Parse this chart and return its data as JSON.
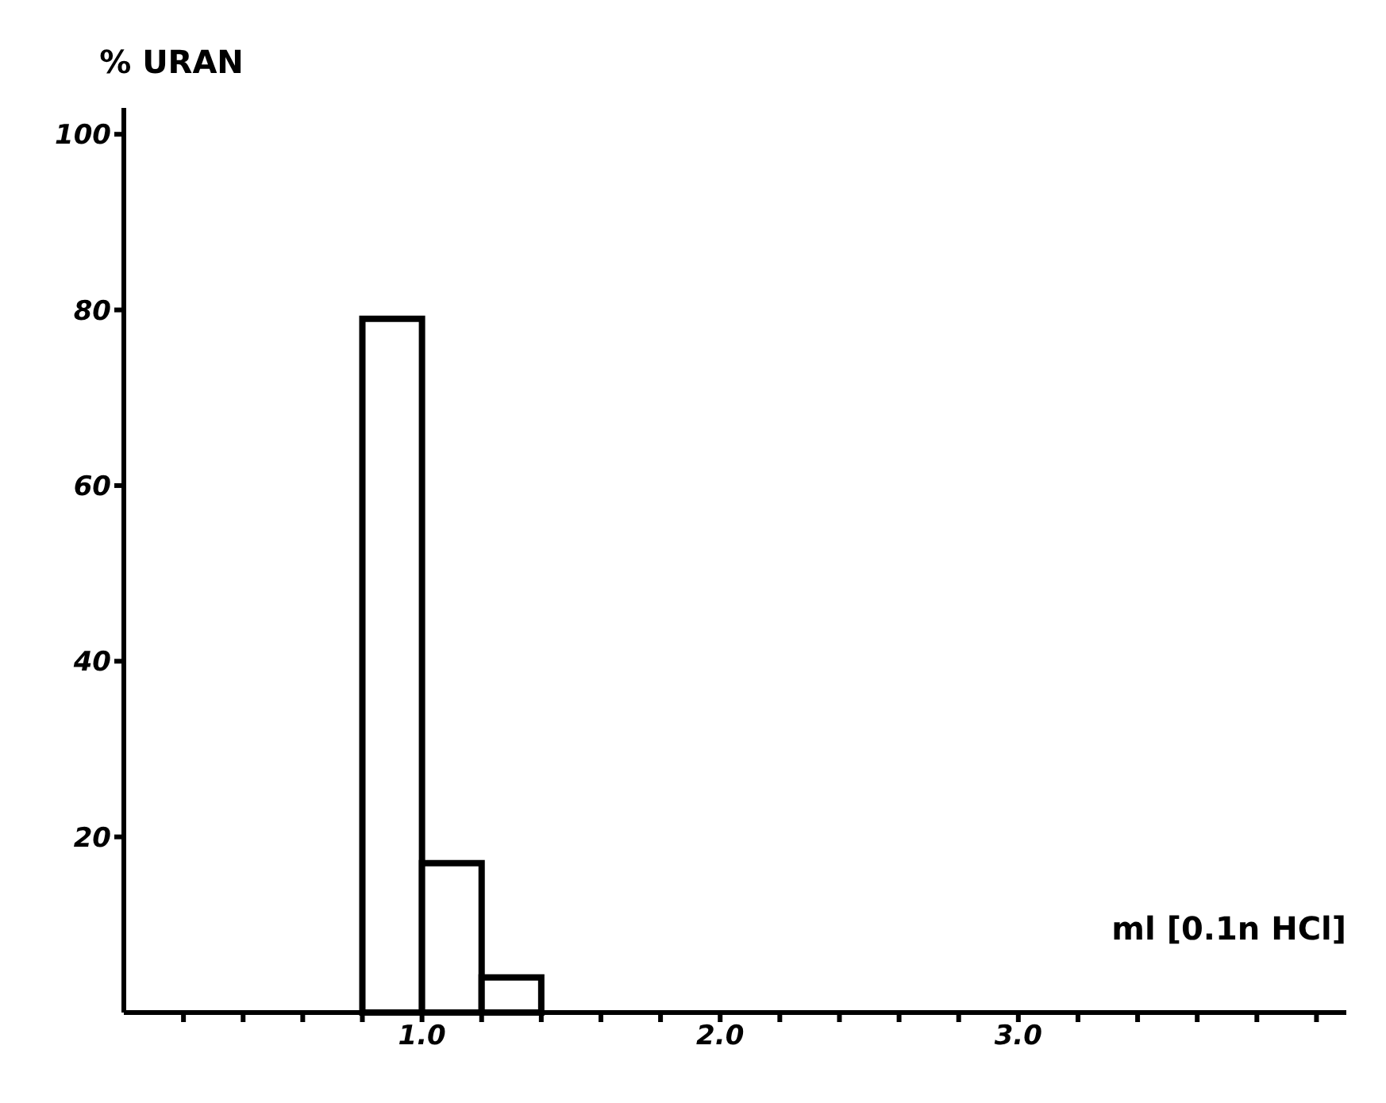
{
  "chart_data": {
    "type": "histogram",
    "ylabel": "% URAN",
    "xlabel": "ml [0.1n HCl]",
    "bins": [
      0.8,
      1.0,
      1.2,
      1.4
    ],
    "values": [
      79,
      17,
      4
    ],
    "color": "#000000",
    "xlim": [
      0,
      4.1
    ],
    "ylim": [
      0,
      103
    ],
    "xticks": [
      {
        "value": 0.2,
        "label": null
      },
      {
        "value": 0.4,
        "label": null
      },
      {
        "value": 0.6,
        "label": null
      },
      {
        "value": 0.8,
        "label": null
      },
      {
        "value": 1.0,
        "label": "1.0"
      },
      {
        "value": 1.2,
        "label": null
      },
      {
        "value": 1.4,
        "label": null
      },
      {
        "value": 1.6,
        "label": null
      },
      {
        "value": 1.8,
        "label": null
      },
      {
        "value": 2.0,
        "label": "2.0"
      },
      {
        "value": 2.2,
        "label": null
      },
      {
        "value": 2.4,
        "label": null
      },
      {
        "value": 2.6,
        "label": null
      },
      {
        "value": 2.8,
        "label": null
      },
      {
        "value": 3.0,
        "label": "3.0"
      },
      {
        "value": 3.2,
        "label": null
      },
      {
        "value": 3.4,
        "label": null
      },
      {
        "value": 3.6,
        "label": null
      },
      {
        "value": 3.8,
        "label": null
      },
      {
        "value": 4.0,
        "label": null
      }
    ],
    "yticks": [
      20,
      40,
      60,
      80,
      100
    ],
    "grid": false
  }
}
